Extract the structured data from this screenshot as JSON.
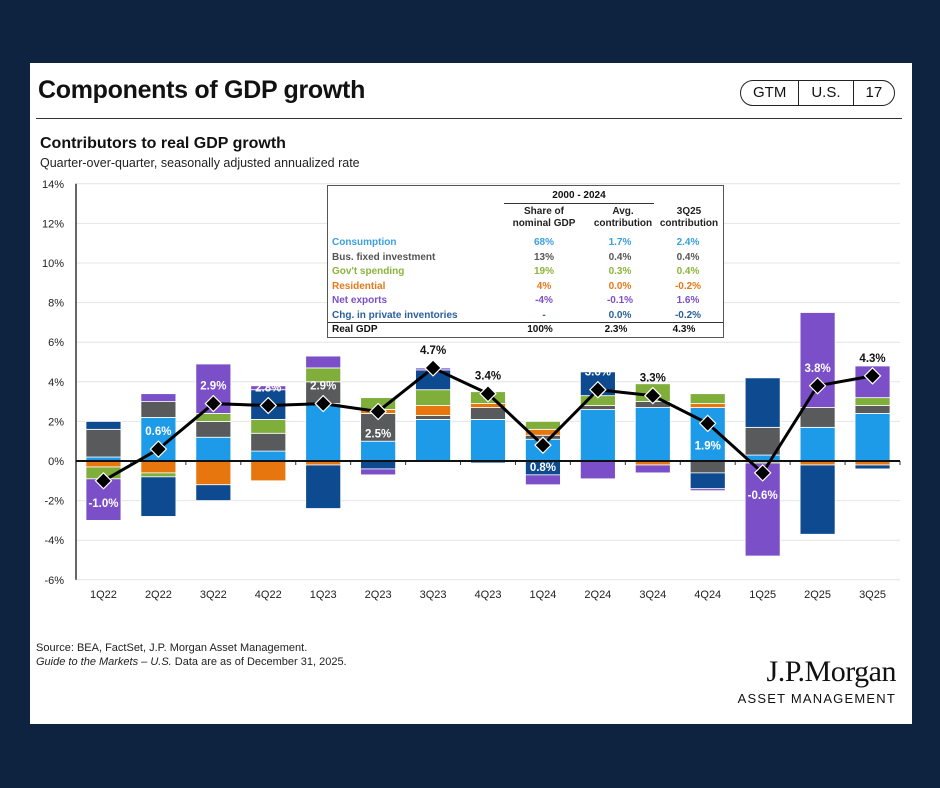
{
  "header": {
    "title": "Components of GDP growth",
    "badge": [
      "GTM",
      "U.S.",
      "17"
    ]
  },
  "chart_data": {
    "type": "bar",
    "title": "Contributors to real GDP growth",
    "subtitle": "Quarter-over-quarter, seasonally adjusted annualized rate",
    "stacked": true,
    "ylim": [
      -6,
      14
    ],
    "yticks": [
      "-6%",
      "-4%",
      "-2%",
      "0%",
      "2%",
      "4%",
      "6%",
      "8%",
      "10%",
      "12%",
      "14%"
    ],
    "ytick_values": [
      -6,
      -4,
      -2,
      0,
      2,
      4,
      6,
      8,
      10,
      12,
      14
    ],
    "grid": true,
    "categories": [
      "1Q22",
      "2Q22",
      "3Q22",
      "4Q22",
      "1Q23",
      "2Q23",
      "3Q23",
      "4Q23",
      "1Q24",
      "2Q24",
      "3Q24",
      "4Q24",
      "1Q25",
      "2Q25",
      "3Q25"
    ],
    "series": [
      {
        "name": "Consumption",
        "color": "#1e9be8",
        "values": [
          0.2,
          2.2,
          1.2,
          0.5,
          2.9,
          1.0,
          2.1,
          2.1,
          1.1,
          2.6,
          2.7,
          2.7,
          0.3,
          1.7,
          2.4
        ]
      },
      {
        "name": "Bus. fixed investment",
        "color": "#595a5c",
        "values": [
          1.4,
          0.8,
          0.8,
          0.9,
          1.1,
          1.4,
          0.2,
          0.6,
          0.2,
          0.2,
          0.3,
          -0.6,
          1.4,
          1.0,
          0.4
        ]
      },
      {
        "name": "Residential",
        "color": "#e8760f",
        "values": [
          -0.3,
          -0.6,
          -1.2,
          -1.0,
          -0.2,
          0.2,
          0.5,
          0.2,
          0.3,
          0.0,
          -0.2,
          0.2,
          0.0,
          -0.2,
          -0.2
        ]
      },
      {
        "name": "Gov't spending",
        "color": "#7fae3a",
        "values": [
          -0.6,
          -0.2,
          0.4,
          0.7,
          0.7,
          0.6,
          0.8,
          0.6,
          0.4,
          0.5,
          0.9,
          0.5,
          -0.1,
          0.0,
          0.4
        ]
      },
      {
        "name": "Chg. in private inventories",
        "color": "#0d4a8f",
        "values": [
          0.4,
          -2.0,
          -0.8,
          1.5,
          -2.2,
          -0.4,
          1.0,
          -0.1,
          -0.7,
          1.2,
          0.0,
          -0.8,
          2.5,
          -3.5,
          -0.2
        ]
      },
      {
        "name": "Net exports",
        "color": "#7b4fc8",
        "values": [
          -2.1,
          0.4,
          2.5,
          0.2,
          0.6,
          -0.3,
          0.1,
          0.0,
          -0.5,
          -0.9,
          -0.4,
          -0.1,
          -4.7,
          4.8,
          1.6
        ]
      }
    ],
    "line": {
      "name": "Real GDP",
      "color": "#000000",
      "values": [
        -1.0,
        0.6,
        2.9,
        2.8,
        2.9,
        2.5,
        4.7,
        3.4,
        0.8,
        3.6,
        3.3,
        1.9,
        -0.6,
        3.8,
        4.3
      ],
      "labels": [
        "-1.0%",
        "0.6%",
        "2.9%",
        "2.8%",
        "2.9%",
        "2.5%",
        "4.7%",
        "3.4%",
        "0.8%",
        "3.6%",
        "3.3%",
        "1.9%",
        "-0.6%",
        "3.8%",
        "4.3%"
      ]
    },
    "table": {
      "period": "2000 - 2024",
      "headers": [
        "Share of nominal GDP",
        "Avg. contribution",
        "3Q25 contribution"
      ],
      "rows": [
        {
          "label": "Consumption",
          "color": "#3aa0de",
          "share": "68%",
          "avg": "1.7%",
          "q": "2.4%"
        },
        {
          "label": "Bus. fixed investment",
          "color": "#555555",
          "share": "13%",
          "avg": "0.4%",
          "q": "0.4%"
        },
        {
          "label": "Gov't spending",
          "color": "#8cb43c",
          "share": "19%",
          "avg": "0.3%",
          "q": "0.4%"
        },
        {
          "label": "Residential",
          "color": "#e8781a",
          "share": "4%",
          "avg": "0.0%",
          "q": "-0.2%"
        },
        {
          "label": "Net exports",
          "color": "#7b4fc8",
          "share": "-4%",
          "avg": "-0.1%",
          "q": "1.6%"
        },
        {
          "label": "Chg. in private inventories",
          "color": "#2a5f9e",
          "share": "-",
          "avg": "0.0%",
          "q": "-0.2%"
        }
      ],
      "total": {
        "label": "Real GDP",
        "share": "100%",
        "avg": "2.3%",
        "q": "4.3%"
      }
    }
  },
  "footer": {
    "source": "Source: BEA, FactSet, J.P. Morgan Asset Management.",
    "guide": "Guide to the Markets – U.S.",
    "asof": " Data are as of December 31, 2025."
  },
  "logo": {
    "name": "J.P.Morgan",
    "sub": "ASSET MANAGEMENT"
  }
}
